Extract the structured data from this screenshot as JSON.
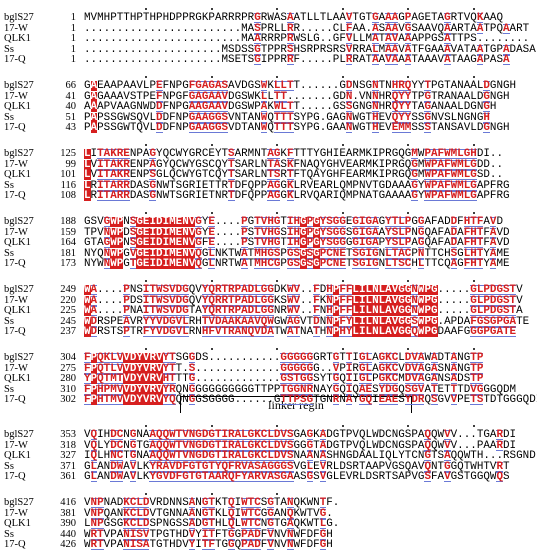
{
  "blocks": [
    {
      "rows": [
        {
          "name": "bglS27",
          "start": 1,
          "seq": "MVMHPTTHPTHPHDPPRGKPARRRPRGRWASAATLLTLAAVTGTGAAAGPAGETAGRTVQKAAQ"
        },
        {
          "name": "17-W",
          "start": 1,
          "seq": "........................MASPRLLRR.....CLFAA.ASAAVGSAAVQAARTAATPQAART"
        },
        {
          "name": "QLK1",
          "start": 1,
          "seq": "........................MAARRRPRWSLG..GFVLLMATAVAAAPPGSATTPS........"
        },
        {
          "name": "Ss",
          "start": 1,
          "seq": ".....................MSDSSGTPPRSHSRPRSRSVRRALMAAVATFGAAAVATAATGPADASA"
        },
        {
          "name": "17-Q",
          "start": 1,
          "seq": ".....................MSETSGIPPRRF.....PLRRATAAVAAATAAAVATAAGAPASA"
        }
      ]
    },
    {
      "rows": [
        {
          "name": "bglS27",
          "start": 66,
          "seq": "GAEAAPAAVLPEFNPGFGAGASAVDGSWKLLTT......GDNSGNTNHRQYYTPGTANAALDGNGH"
        },
        {
          "name": "17-W",
          "start": 41,
          "seq": "GAGAAAVSTPEFNPGFGAGAAVDGSWKLLTT.......GDN.VNNHRQYYTPGTRANAALDGNGH"
        },
        {
          "name": "QLK1",
          "start": 40,
          "seq": "AAAPVAAGNWDDFNPGAAGAAVDGSWPAKWLTT.....GSSGNGNHRQYYTAGANAALDGNGH"
        },
        {
          "name": "Ss",
          "start": 51,
          "seq": "PAPSSGWSQVLDDFNPGAAGGSVNTANWQTTTSYPG.GAGNWGTHEVQYYSSGNVSLNGNGH"
        },
        {
          "name": "17-Q",
          "start": 43,
          "seq": "PAPSSGWTQVLDDFNPGAAGGSVDTANWQTTTSYPG.GAANWGTHEVEMMSSSTANSAVLDGNGH"
        }
      ]
    },
    {
      "rows": [
        {
          "name": "bglS27",
          "start": 125,
          "seq": "LITAKRENPAGYQCWYGRCEYTSARMNTAGKFTTTYGHIEARMKIPRGQGMWPAFWMLGHDI.."
        },
        {
          "name": "17-W",
          "start": 99,
          "seq": "LVITAKRENPAGYQCWYGSCQYTSARLNTASKFNAQYGHVEARMKIPRGQGMWPAFWMLGDD.."
        },
        {
          "name": "QLK1",
          "start": 101,
          "seq": "LVITAKRENPSGLQCWYGTCQYTSARLNTSRTFTQAYGHFEARMKIPRGQGMWPAFWMLGSD.."
        },
        {
          "name": "Ss",
          "start": 116,
          "seq": "LRITARRDASGNWTSGRIETTRTDFQPPAGGKLRVEARLQMPNVTGDAAAGYWPAFWMLGAPFRG"
        },
        {
          "name": "17-Q",
          "start": 108,
          "seq": "LRITARRDASGNWTSGRIETNRTDFQPPAGGKLRVQARIQMPNATGAAAAGYWPAFWMLGAPFRG"
        }
      ]
    },
    {
      "rows": [
        {
          "name": "bglS27",
          "start": 188,
          "seq": "GSVGWPNSGEIDIMENVGYE....PGTVHGTIHGPGYSGGEGIGAGYTLPGGAFADDFHTFAVD"
        },
        {
          "name": "17-W",
          "start": 159,
          "seq": "TPVNWPDSGEIDIMENVGYE....PSTVHGSIHGPGYSGGSGIGAAYSLPNGQAFADAFHTFAVD"
        },
        {
          "name": "QLK1",
          "start": 164,
          "seq": "GTAGWPNSGEIDIMENVGFE....PSTVHGTIHGPGYSGGGGIGAPYSLPAGQAFADAFHTFAVD"
        },
        {
          "name": "Ss",
          "start": 181,
          "seq": "NYQNWPGVGEIDIMENVQGLNKTWATMHGSPGSGSGPCNETSGIGNLTACPNTTCHSGLHTYAME"
        },
        {
          "name": "17-Q",
          "start": 173,
          "seq": "NYWNWPGTGEIDIMENVQGLNRTWATMHCGPGSGSGPCNETSGIGNLTSCHLTTCQAGFHTYAME"
        }
      ]
    },
    {
      "rows": [
        {
          "name": "bglS27",
          "start": 249,
          "seq": "WA....PNSITWSVDGQVYQRTRPADLGGDKWV..FDHPFFLILNLAVGGNWPG.....GLPDGSTV"
        },
        {
          "name": "17-W",
          "start": 220,
          "seq": "WA....PDSITWSVDGQVYQRRTPADLGGKSWV..FKNPFFLILNLAVGGNWPG.....GLPDGSTV"
        },
        {
          "name": "QLK1",
          "start": 225,
          "seq": "WA....PNAITWSVDGTAYQRTRPADLGGNRWV..FNHPFFLILNLAVGGNWPG.....GLPDGSTA"
        },
        {
          "name": "Ss",
          "start": 245,
          "seq": "WDRSPEAVRYYVDGVLRHTVDAAKAAVQWGWAGVTDNNPFYLILNLAVGGSWPG.APDAFGSGPGATE"
        },
        {
          "name": "17-Q",
          "start": 237,
          "seq": "WDRSTSPTRFYVDGVLRNHFVTRANQVDATWATNATHNPHYLILNLAVGGQWPGDAAFGGGPGATE"
        }
      ]
    },
    {
      "rows": [
        {
          "name": "bglS27",
          "start": 304,
          "seq": "FPQKLVVDYVRVYTSGGDS...........GGGGGGRTGTTIGLAGKCLDVAWADTANGTP"
        },
        {
          "name": "17-W",
          "start": 275,
          "seq": "FPQTLVVDYVRVYTT.S.............GGGGGG..VPIRGLAGKCVDVAGASNANGTP"
        },
        {
          "name": "QLK1",
          "start": 280,
          "seq": "YPQTMTVDYVRVHTTTG.............GSTGGSYTGQIIGLPGKCMDVAGANSADSTP"
        },
        {
          "name": "Ss",
          "start": 310,
          "seq": "FPHPMVVDYVRVYRQNGGGGGGGGGGTTPPTGGNRNAYGQIQAESYDGQSGVATETTTDVGGGQDM"
        },
        {
          "name": "17-Q",
          "start": 302,
          "seq": "FPHTMVVDYVRVYQQNGGSGGGG......GTTPSGTGNRNAYGQIEAESYDRQSGVVPETSTDTGGGQDI"
        }
      ]
    },
    {
      "rows": [
        {
          "name": "bglS27",
          "start": 353,
          "seq": "VQIHDCNGNAAQQWTVNGDGTIRALGKCLDVSGAGKADGTPVQLWDCNGSPAQQWVV...TGARDI"
        },
        {
          "name": "17-W",
          "start": 318,
          "seq": "VQLYDCNGTGAQQWTVNGDGTIRALGKCLDVSGGGTADGTPVQLWDCNGSPAQQWVV...PAARDI"
        },
        {
          "name": "QLK1",
          "start": 327,
          "seq": "IQLHNCTGNAAQQWTVNGDGTIRALGKCLDVSNAANASHNGDAALIQLYTCNGTSAQQWTH...RSGNDL"
        },
        {
          "name": "Ss",
          "start": 371,
          "seq": "GLANDWAVLKYRAVDFGTGTYQFRVASAGGGSVGLEVRLDSRTAAPVGSQAVQNTGGQTWHTVRT"
        },
        {
          "name": "17-Q",
          "start": 361,
          "seq": "GLANDWAVLKYGVDFGTGTAARQFYARVASGAASGSVGLEVRLDSRTSAPVGSFAVGSTGGQWQS"
        }
      ]
    },
    {
      "rows": [
        {
          "name": "bglS27",
          "start": 416,
          "seq": "VNPNADKCLDVRDNNSANGTKTQIWTCSGTANQKWNTF."
        },
        {
          "name": "17-W",
          "start": 381,
          "seq": "VNPQANKCLDVTGNNAANGTKLQIWTCGGANQKWTVG."
        },
        {
          "name": "QLK1",
          "start": 390,
          "seq": "LNPGSGKCLDSPNGSSADGTHLQLWTCNGTGAQKWTLG."
        },
        {
          "name": "Ss",
          "start": 440,
          "seq": "WRTVPANISVTPGTHDVYITFTGGPADFVNVNWFDFGH"
        },
        {
          "name": "17-Q",
          "start": 426,
          "seq": "WRTVPANISATGTHDVYITFTGGQPADFVNVNWFDFGH"
        }
      ]
    }
  ],
  "annotation": "linker regin"
}
